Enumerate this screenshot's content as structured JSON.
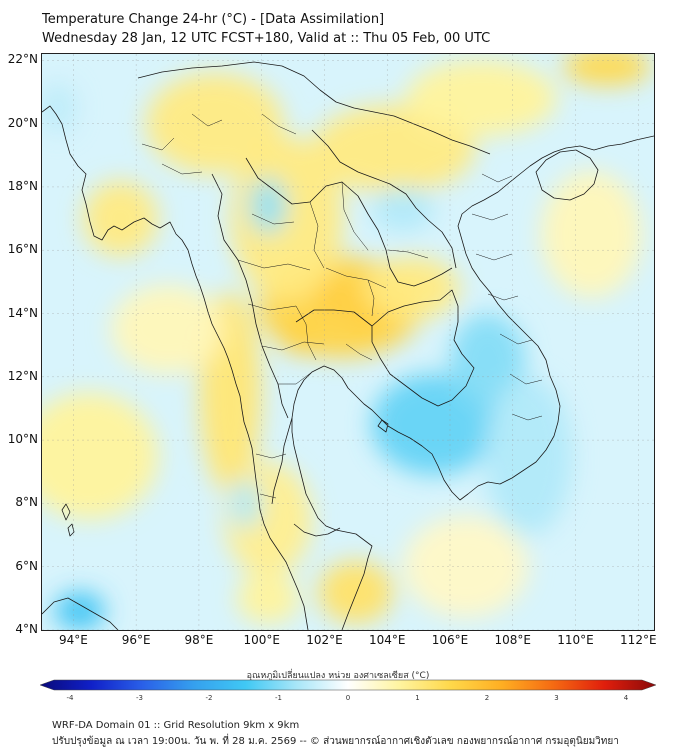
{
  "header": {
    "title_line1": "Temperature Change 24-hr (°C) - [Data Assimilation]",
    "title_line2": "Wednesday 28 Jan, 12 UTC FCST+180, Valid at :: Thu 05 Feb, 00 UTC"
  },
  "map": {
    "lon_range": [
      93,
      112.5
    ],
    "lat_range": [
      4,
      22.2
    ],
    "lat_ticks": [
      {
        "value": 22,
        "label": "22°N"
      },
      {
        "value": 20,
        "label": "20°N"
      },
      {
        "value": 18,
        "label": "18°N"
      },
      {
        "value": 16,
        "label": "16°N"
      },
      {
        "value": 14,
        "label": "14°N"
      },
      {
        "value": 12,
        "label": "12°N"
      },
      {
        "value": 10,
        "label": "10°N"
      },
      {
        "value": 8,
        "label": "8°N"
      },
      {
        "value": 6,
        "label": "6°N"
      },
      {
        "value": 4,
        "label": "4°N"
      }
    ],
    "lon_ticks": [
      {
        "value": 94,
        "label": "94°E"
      },
      {
        "value": 96,
        "label": "96°E"
      },
      {
        "value": 98,
        "label": "98°E"
      },
      {
        "value": 100,
        "label": "100°E"
      },
      {
        "value": 102,
        "label": "102°E"
      },
      {
        "value": 104,
        "label": "104°E"
      },
      {
        "value": 106,
        "label": "106°E"
      },
      {
        "value": 108,
        "label": "108°E"
      },
      {
        "value": 110,
        "label": "110°E"
      },
      {
        "value": 112,
        "label": "112°E"
      }
    ],
    "field_background_value": -0.3,
    "field_blobs": [
      {
        "lon": 102.4,
        "lat": 14.5,
        "value": 2.6,
        "rlon": 0.7,
        "rlat": 0.5
      },
      {
        "lon": 103.4,
        "lat": 13.9,
        "value": 2.2,
        "rlon": 0.7,
        "rlat": 0.5
      },
      {
        "lon": 101.2,
        "lat": 13.2,
        "value": 1.5,
        "rlon": 0.6,
        "rlat": 0.5
      },
      {
        "lon": 102.5,
        "lat": 14.2,
        "value": 1.4,
        "rlon": 2.6,
        "rlat": 1.6
      },
      {
        "lon": 104.8,
        "lat": 14.8,
        "value": 0.9,
        "rlon": 1.5,
        "rlat": 1.0
      },
      {
        "lon": 100.8,
        "lat": 17.0,
        "value": 0.9,
        "rlon": 1.8,
        "rlat": 2.6
      },
      {
        "lon": 98.5,
        "lat": 20.0,
        "value": 0.9,
        "rlon": 2.2,
        "rlat": 1.6
      },
      {
        "lon": 104.2,
        "lat": 19.2,
        "value": 0.9,
        "rlon": 2.6,
        "rlat": 1.4
      },
      {
        "lon": 107.0,
        "lat": 20.8,
        "value": 0.7,
        "rlon": 2.4,
        "rlat": 1.2
      },
      {
        "lon": 111.0,
        "lat": 21.8,
        "value": 1.3,
        "rlon": 1.4,
        "rlat": 0.6
      },
      {
        "lon": 99.0,
        "lat": 11.5,
        "value": 1.0,
        "rlon": 1.0,
        "rlat": 3.2
      },
      {
        "lon": 100.2,
        "lat": 7.5,
        "value": 0.8,
        "rlon": 1.4,
        "rlat": 1.8
      },
      {
        "lon": 103.0,
        "lat": 5.2,
        "value": 1.1,
        "rlon": 1.2,
        "rlat": 1.0
      },
      {
        "lon": 100.2,
        "lat": 5.0,
        "value": 0.7,
        "rlon": 1.0,
        "rlat": 0.8
      },
      {
        "lon": 94.5,
        "lat": 9.5,
        "value": 0.7,
        "rlon": 2.2,
        "rlat": 2.0
      },
      {
        "lon": 95.5,
        "lat": 17.0,
        "value": 0.9,
        "rlon": 1.2,
        "rlat": 1.2
      },
      {
        "lon": 97.0,
        "lat": 13.5,
        "value": 0.5,
        "rlon": 1.8,
        "rlat": 1.4
      },
      {
        "lon": 110.5,
        "lat": 16.5,
        "value": 0.5,
        "rlon": 1.6,
        "rlat": 2.0
      },
      {
        "lon": 106.5,
        "lat": 6.0,
        "value": 0.4,
        "rlon": 2.0,
        "rlat": 1.6
      },
      {
        "lon": 105.5,
        "lat": 10.5,
        "value": -1.1,
        "rlon": 2.0,
        "rlat": 1.6
      },
      {
        "lon": 107.2,
        "lat": 12.5,
        "value": -0.9,
        "rlon": 1.2,
        "rlat": 1.5
      },
      {
        "lon": 100.2,
        "lat": 17.4,
        "value": -0.8,
        "rlon": 0.6,
        "rlat": 0.9
      },
      {
        "lon": 104.5,
        "lat": 17.3,
        "value": -0.6,
        "rlon": 1.0,
        "rlat": 0.7
      },
      {
        "lon": 94.2,
        "lat": 4.6,
        "value": -1.4,
        "rlon": 0.8,
        "rlat": 0.6
      },
      {
        "lon": 99.5,
        "lat": 8.0,
        "value": -0.6,
        "rlon": 0.5,
        "rlat": 0.8
      },
      {
        "lon": 108.5,
        "lat": 9.5,
        "value": -0.6,
        "rlon": 1.4,
        "rlat": 2.5
      },
      {
        "lon": 93.5,
        "lat": 20.5,
        "value": -0.5,
        "rlon": 0.6,
        "rlat": 0.8
      }
    ]
  },
  "colorbar": {
    "label": "อุณหภูมิเปลี่ยนแปลง หน่วย องศาเซลเซียส (°C)",
    "min": -4,
    "max": 4,
    "ticks": [
      "-4",
      "-3",
      "-2",
      "-1",
      "0",
      "1",
      "2",
      "3",
      "4"
    ],
    "colors": [
      "#0a0a7a",
      "#1020c8",
      "#2a60e8",
      "#35a0ee",
      "#40c8f4",
      "#a8e6f8",
      "#ffffff",
      "#fff4a0",
      "#ffd84a",
      "#ffae22",
      "#f56a12",
      "#e01e0c",
      "#8a0a0a"
    ]
  },
  "footer": {
    "line1": "WRF-DA Domain 01 :: Grid Resolution 9km x 9km",
    "line2": "ปรับปรุงข้อมูล ณ เวลา 19:00น. วัน พ. ที่ 28 ม.ค. 2569 -- © ส่วนพยากรณ์อากาศเชิงตัวเลข กองพยากรณ์อากาศ กรมอุตุนิยมวิทยา"
  }
}
